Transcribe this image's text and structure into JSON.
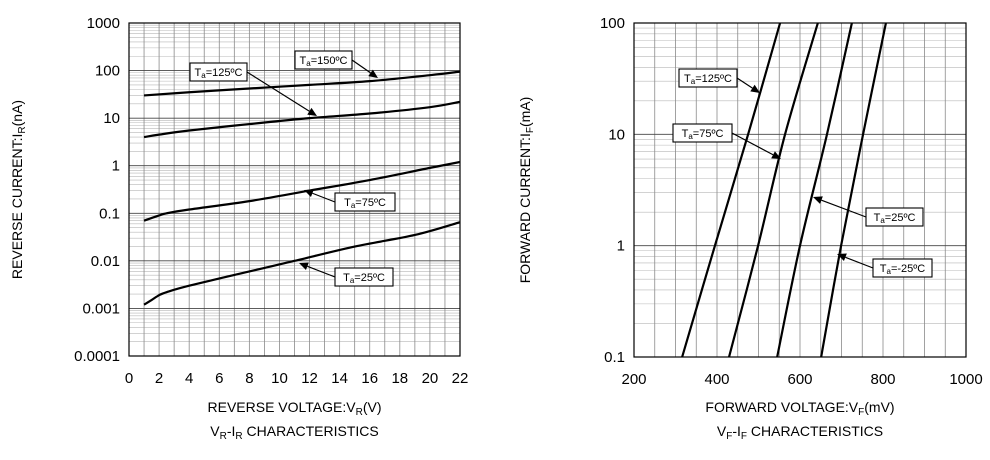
{
  "chart_data": [
    {
      "type": "line",
      "title": {
        "parts": [
          [
            "V",
            ""
          ],
          [
            "R",
            "sub"
          ],
          [
            "-I",
            ""
          ],
          [
            "R",
            "sub"
          ],
          [
            " CHARACTERISTICS",
            ""
          ]
        ]
      },
      "xlabel": {
        "parts": [
          [
            "REVERSE VOLTAGE:V",
            ""
          ],
          [
            "R",
            "sub"
          ],
          [
            "(V)",
            ""
          ]
        ]
      },
      "ylabel": {
        "parts": [
          [
            "REVERSE CURRENT:I",
            ""
          ],
          [
            "R",
            "sub"
          ],
          [
            "(nA)",
            ""
          ]
        ]
      },
      "xlim": [
        0,
        22
      ],
      "ylim": [
        0.0001,
        1000
      ],
      "yscale": "log",
      "grid": true,
      "xticks": [
        "0",
        "2",
        "4",
        "6",
        "8",
        "10",
        "12",
        "14",
        "16",
        "18",
        "20",
        "22"
      ],
      "yticks": [
        "0.0001",
        "0.001",
        "0.01",
        "0.1",
        "1",
        "10",
        "100",
        "1000"
      ],
      "series": [
        {
          "name": {
            "pre": "T",
            "sub": "a",
            "post": "=150ºC"
          },
          "x": [
            1,
            4,
            8,
            12,
            16,
            20,
            22
          ],
          "y": [
            30,
            35,
            42,
            50,
            60,
            80,
            95
          ]
        },
        {
          "name": {
            "pre": "T",
            "sub": "a",
            "post": "=125ºC"
          },
          "x": [
            1,
            2,
            4,
            8,
            12,
            16,
            20,
            22
          ],
          "y": [
            4,
            4.5,
            5.5,
            7.5,
            10,
            12.5,
            17,
            22
          ]
        },
        {
          "name": {
            "pre": "T",
            "sub": "a",
            "post": "=75ºC"
          },
          "x": [
            1,
            2,
            2.5,
            4,
            8,
            12,
            16,
            20,
            22
          ],
          "y": [
            0.07,
            0.09,
            0.1,
            0.12,
            0.18,
            0.3,
            0.5,
            0.9,
            1.2
          ]
        },
        {
          "name": {
            "pre": "T",
            "sub": "a",
            "post": "=25ºC"
          },
          "x": [
            1,
            1.5,
            2,
            2.5,
            4,
            8,
            11,
            15,
            19,
            22
          ],
          "y": [
            0.0012,
            0.0015,
            0.0019,
            0.0022,
            0.003,
            0.006,
            0.01,
            0.02,
            0.035,
            0.065
          ]
        }
      ]
    },
    {
      "type": "line",
      "title": {
        "parts": [
          [
            "V",
            ""
          ],
          [
            "F",
            "sub"
          ],
          [
            "-I",
            ""
          ],
          [
            "F",
            "sub"
          ],
          [
            " CHARACTERISTICS",
            ""
          ]
        ]
      },
      "xlabel": {
        "parts": [
          [
            "FORWARD VOLTAGE:V",
            ""
          ],
          [
            "F",
            "sub"
          ],
          [
            "(mV)",
            ""
          ]
        ]
      },
      "ylabel": {
        "parts": [
          [
            "FORWARD CURRENT:I",
            ""
          ],
          [
            "F",
            "sub"
          ],
          [
            "(mA)",
            ""
          ]
        ]
      },
      "xlim": [
        200,
        1000
      ],
      "ylim": [
        0.1,
        100
      ],
      "yscale": "log",
      "grid": true,
      "xticks": [
        "200",
        "400",
        "600",
        "800",
        "1000"
      ],
      "yticks": [
        "0.1",
        "1",
        "10",
        "100"
      ],
      "series": [
        {
          "name": {
            "pre": "T",
            "sub": "a",
            "post": "=125ºC"
          },
          "x": [
            316,
            395,
            475,
            552
          ],
          "y": [
            0.1,
            1,
            10,
            100
          ]
        },
        {
          "name": {
            "pre": "T",
            "sub": "a",
            "post": "=75ºC"
          },
          "x": [
            429,
            499,
            564,
            643
          ],
          "y": [
            0.1,
            1,
            10,
            100
          ]
        },
        {
          "name": {
            "pre": "T",
            "sub": "a",
            "post": "=25ºC"
          },
          "x": [
            545,
            600,
            665,
            725
          ],
          "y": [
            0.1,
            1,
            10,
            100
          ]
        },
        {
          "name": {
            "pre": "T",
            "sub": "a",
            "post": "=-25ºC"
          },
          "x": [
            651,
            699,
            752,
            807
          ],
          "y": [
            0.1,
            1,
            10,
            100
          ]
        }
      ]
    }
  ]
}
